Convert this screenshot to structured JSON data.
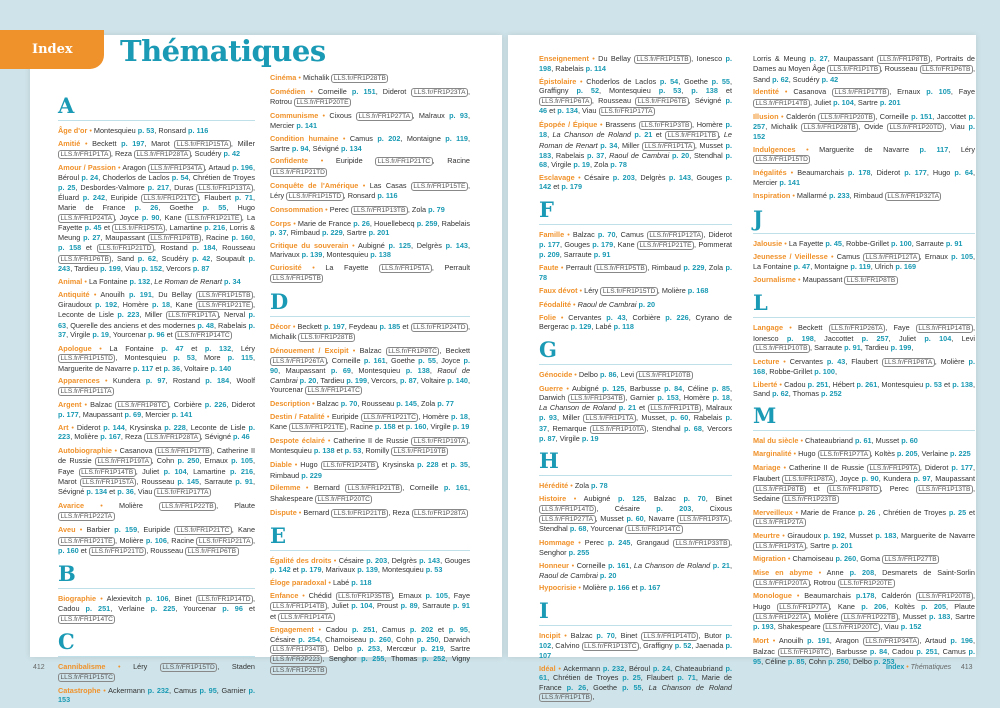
{
  "header": {
    "tab": "Index",
    "title": "Thématiques"
  },
  "footer": {
    "left_page": "412",
    "section": "Index",
    "separator": "•",
    "subsection": "Thématiques",
    "right_page": "413"
  },
  "colors": {
    "accent_orange": "#f0922b",
    "accent_teal": "#1a9ab4",
    "background": "#cfe4ea"
  },
  "columns": [
    [
      {
        "letter": "A"
      },
      {
        "term": "Âge d'or",
        "body": "Montesquieu p. 53, Ronsard p. 116"
      },
      {
        "term": "Amitié",
        "body": "Beckett p. 197, Marot LLS.fr/FR1P15TA, Miller LLS.fr/FR1P1TA, Reza LLS.fr/FR1P28TA, Scudéry p. 42"
      },
      {
        "term": "Amour / Passion",
        "body": "Aragon LLS.fr/FR1P34TA, Artaud p. 196, Béroul p. 24, Choderlos de Laclos p. 54, Chrétien de Troyes p. 25, Desbordes-Valmore p. 217, Duras LLS.fr/FR1P13TA, Éluard p. 242, Euripide LLS.fr/FR1P21TC, Flaubert p. 71, Marie de France p. 26, Goethe p. 55, Hugo LLS.fr/FR1P24TA, Joyce p. 90, Kane LLS.fr/FR1P21TE, La Fayette p. 45 et LLS.fr/FR1P5TA, Lamartine p. 216, Lorris & Meung p. 27, Maupassant LLS.fr/FR1P8TB, Racine p. 160, p. 158 et LLS.fr/FR1P21TD, Rostand p. 184, Rousseau LLS.fr/FR1P6TB, Sand p. 62, Scudéry p. 42, Soupault p. 243, Tardieu p. 199, Viau p. 152, Vercors p. 87"
      },
      {
        "term": "Animal",
        "body": "La Fontaine p. 132, Le Roman de Renart p. 34",
        "italic": [
          "Le Roman de Renart"
        ]
      },
      {
        "term": "Antiquité",
        "body": "Anouilh p. 191, Du Bellay LLS.fr/FR1P15TB, Giraudoux p. 192, Homère p. 18, Kane LLS.fr/FR1P21TE, Leconte de Lisle p. 223, Miller LLS.fr/FR1P1TA, Nerval p. 63, Querelle des anciens et des modernes p. 48, Rabelais p. 37, Virgile p. 19, Yourcenar p. 96 et LLS.fr/FR1P14TC"
      },
      {
        "term": "Apologue",
        "body": "La Fontaine p. 47 et p. 132, Léry LLS.fr/FR1P15TD, Montesquieu p. 53, More p. 115, Marguerite de Navarre p. 117 et p. 36, Voltaire p. 140"
      },
      {
        "term": "Apparences",
        "body": "Kundera p. 97, Rostand p. 184, Woolf LLS.fr/FR1P11TA"
      },
      {
        "term": "Argent",
        "body": "Balzac LLS.fr/FR1P8TC, Corbière p. 226, Diderot p. 177, Maupassant p. 69, Mercier p. 141"
      },
      {
        "term": "Art",
        "body": "Diderot p. 144, Krysinska p. 228, Leconte de Lisle p. 223, Molière p. 167, Reza LLS.fr/FR1P28TA, Sévigné p. 46"
      },
      {
        "term": "Autobiographie",
        "body": "Casanova LLS.fr/FR1P17TB, Catherine II de Russie LLS.fr/FR1P19TA, Cohn p. 250, Ernaux p. 105, Faye LLS.fr/FR1P14TB, Juliet p. 104, Lamartine p. 216, Marot LLS.fr/FR1P15TA, Rousseau p. 145, Sarraute p. 91, Sévigné p. 134 et p. 36, Viau LLS.fr/FR1P17TA"
      },
      {
        "term": "Avarice",
        "body": "Molière LLS.fr/FR1P22TB, Plaute LLS.fr/FR1P22TA"
      },
      {
        "term": "Aveu",
        "body": "Barbier p. 159, Euripide LLS.fr/FR1P21TC, Kane LLS.fr/FR1P21TE, Molière p. 106, Racine LLS.fr/FR1P21TA, p. 160 et LLS.fr/FR1P21TD, Rousseau LLS.fr/FR1P6TB"
      },
      {
        "letter": "B"
      },
      {
        "term": "Biographie",
        "body": "Alexievitch p. 106, Binet LLS.fr/FR1P14TD, Cadou p. 251, Verlaine p. 225, Yourcenar p. 96 et LLS.fr/FR1P14TC"
      },
      {
        "letter": "C"
      },
      {
        "term": "Cannibalisme",
        "body": "Léry LLS.fr/FR1P15TD, Staden LLS.fr/FR1P15TC"
      },
      {
        "term": "Catastrophe",
        "body": "Ackermann p. 232, Camus p. 95, Garnier p. 153"
      }
    ],
    [
      {
        "term": "Cinéma",
        "body": "Michalik LLS.fr/FR1P28TB"
      },
      {
        "term": "Comédien",
        "body": "Corneille p. 151, Diderot LLS.fr/FR1P23TA, Rotrou LLS.fr/FR1P20TE"
      },
      {
        "term": "Communisme",
        "body": "Cixous LLS.fr/FR1P27TA, Malraux p. 93, Mercier p. 141"
      },
      {
        "term": "Condition humaine",
        "body": "Camus p. 202, Montaigne p. 119, Sartre p. 94, Sévigné p. 134"
      },
      {
        "term": "Confidente",
        "body": "Euripide LLS.fr/FR1P21TC, Racine LLS.fr/FR1P21TD"
      },
      {
        "term": "Conquête de l'Amérique",
        "body": "Las Casas LLS.fr/FR1P15TE, Léry LLS.fr/FR1P15TD, Ronsard p. 116"
      },
      {
        "term": "Consommation",
        "body": "Perec LLS.fr/FR1P13TB, Zola p. 79"
      },
      {
        "term": "Corps",
        "body": "Marie de France p. 26, Houellebecq p. 259, Rabelais p. 37, Rimbaud p. 229, Sartre p. 201"
      },
      {
        "term": "Critique du souverain",
        "body": "Aubigné p. 125, Delgrès p. 143, Marivaux p. 139, Montesquieu p. 138"
      },
      {
        "term": "Curiosité",
        "body": "La Fayette LLS.fr/FR1P5TA, Perrault LLS.fr/FR1P5TB"
      },
      {
        "letter": "D"
      },
      {
        "term": "Décor",
        "body": "Beckett p. 197, Feydeau p. 185 et LLS.fr/FR1P24TD, Michalik LLS.fr/FR1P28TB"
      },
      {
        "term": "Dénouement / Excipit",
        "body": "Balzac LLS.fr/FR1P8TC, Beckett LLS.fr/FR1P26TA, Corneille p. 161, Goethe p. 55, Joyce p. 90, Maupassant p. 69, Montesquieu p. 138, Raoul de Cambrai p. 20, Tardieu p. 199, Vercors, p. 87, Voltaire p. 140, Yourcenar LLS.fr/FR1P14TC",
        "italic": [
          "Raoul de Cambrai"
        ]
      },
      {
        "term": "Description",
        "body": "Balzac p. 70, Rousseau p. 145, Zola p. 77"
      },
      {
        "term": "Destin / Fatalité",
        "body": "Euripide LLS.fr/FR1P21TC, Homère p. 18, Kane LLS.fr/FR1P21TE, Racine p. 158 et p. 160, Virgile p. 19"
      },
      {
        "term": "Despote éclairé",
        "body": "Catherine II de Russie LLS.fr/FR1P19TA, Montesquieu p. 138 et p. 53, Romilly LLS.fr/FR1P19TB"
      },
      {
        "term": "Diable",
        "body": "Hugo LLS.fr/FR1P24TB, Krysinska p. 228 et p. 35, Rimbaud p. 229"
      },
      {
        "term": "Dilemme",
        "body": "Bernard LLS.fr/FR1P21TB, Corneille p. 161, Shakespeare LLS.fr/FR1P20TC"
      },
      {
        "term": "Dispute",
        "body": "Bernard LLS.fr/FR1P21TB, Reza LLS.fr/FR1P28TA"
      },
      {
        "letter": "E"
      },
      {
        "term": "Égalité des droits",
        "body": "Césaire p. 203, Delgrès p. 143, Gouges p. 142 et p. 179, Marivaux p. 139, Montesquieu p. 53"
      },
      {
        "term": "Éloge paradoxal",
        "body": "Labé p. 118"
      },
      {
        "term": "Enfance",
        "body": "Chédid LLS.fr/FR1P35TB, Ernaux p. 105, Faye LLS.fr/FR1P14TB, Juliet p. 104, Proust p. 89, Sarraute p. 91 et LLS.fr/FR1P14TA"
      },
      {
        "term": "Engagement",
        "body": "Cadou p. 251, Camus p. 202 et p. 95, Césaire p. 254, Chamoiseau p. 260, Cohn p. 250, Darwich LLS.fr/FR1P34TB, Delbo p. 253, Mercœur p. 219, Sartre LLS.fr/FR2P223, Senghor p. 255, Thomas p. 252, Vigny LLS.fr/FR1P25TB"
      }
    ],
    [
      {
        "term": "Enseignement",
        "body": "Du Bellay LLS.fr/FR1P15TB, Ionesco p. 198, Rabelais p. 114"
      },
      {
        "term": "Épistolaire",
        "body": "Choderlos de Laclos p. 54, Goethe p. 55, Graffigny p. 52, Montesquieu p. 53, p. 138 et LLS.fr/FR1P6TA, Rousseau LLS.fr/FR1P6TB, Sévigné p. 46 et p. 134, Viau LLS.fr/FR1P17TA"
      },
      {
        "term": "Épopée / Épique",
        "body": "Brassens LLS.fr/FR1P3TB, Homère p. 18, La Chanson de Roland p. 21 et LLS.fr/FR1P1TB, Le Roman de Renart p. 34, Miller LLS.fr/FR1P1TA, Musset p. 183, Rabelais p. 37, Raoul de Cambrai p. 20, Stendhal p. 68, Virgile p. 19, Zola p. 78",
        "italic": [
          "La Chanson de Roland",
          "Le Roman de Renart",
          "Raoul de Cambrai"
        ]
      },
      {
        "term": "Esclavage",
        "body": "Césaire p. 203, Delgrès p. 143, Gouges p. 142 et p. 179"
      },
      {
        "letter": "F"
      },
      {
        "term": "Famille",
        "body": "Balzac p. 70, Camus LLS.fr/FR1P12TA, Diderot p. 177, Gouges p. 179, Kane LLS.fr/FR1P21TE, Pommerat p. 209, Sarraute p. 91"
      },
      {
        "term": "Faute",
        "body": "Perrault LLS.fr/FR1P5TB, Rimbaud p. 229, Zola p. 78"
      },
      {
        "term": "Faux dévot",
        "body": "Léry LLS.fr/FR1P15TD, Molière p. 168"
      },
      {
        "term": "Féodalité",
        "body": "Raoul de Cambrai p. 20",
        "italic": [
          "Raoul de Cambrai"
        ]
      },
      {
        "term": "Folie",
        "body": "Cervantes p. 43, Corbière p. 226, Cyrano de Bergerac p. 129, Labé p. 118"
      },
      {
        "letter": "G"
      },
      {
        "term": "Génocide",
        "body": "Delbo p. 86, Levi LLS.fr/FR1P10TB"
      },
      {
        "term": "Guerre",
        "body": "Aubigné p. 125, Barbusse p. 84, Céline p. 85, Darwich LLS.fr/FR1P34TB, Garnier p. 153, Homère p. 18, La Chanson de Roland p. 21 et LLS.fr/FR1P1TB, Malraux p. 93, Miller LLS.fr/FR1P1TA, Musset, p. 60, Rabelais p. 37, Remarque LLS.fr/FR1P10TA, Stendhal p. 68, Vercors p. 87, Virgile p. 19",
        "italic": [
          "La Chanson de Roland"
        ]
      },
      {
        "letter": "H"
      },
      {
        "term": "Hérédité",
        "body": "Zola p. 78"
      },
      {
        "term": "Histoire",
        "body": "Aubigné p. 125, Balzac p. 70, Binet LLS.fr/FR1P14TD, Césaire p. 203, Cixous LLS.fr/FR1P27TA, Musset p. 60, Navarre LLS.fr/FR1P3TA, Stendhal p. 68, Yourcenar LLS.fr/FR1P14TC"
      },
      {
        "term": "Hommage",
        "body": "Perec p. 245, Grangaud LLS.fr/FR1P33TB, Senghor p. 255"
      },
      {
        "term": "Honneur",
        "body": "Corneille p. 161, La Chanson de Roland p. 21, Raoul de Cambrai p. 20",
        "italic": [
          "La Chanson de Roland",
          "Raoul de Cambrai"
        ]
      },
      {
        "term": "Hypocrisie",
        "body": "Molière p. 166 et p. 167"
      },
      {
        "letter": "I"
      },
      {
        "term": "Incipit",
        "body": "Balzac p. 70, Binet LLS.fr/FR1P14TD, Butor p. 102, Calvino LLS.fr/FR1P13TC, Graffigny p. 52, Jaenada p. 107"
      },
      {
        "term": "Idéal",
        "body": "Ackermann p. 232, Béroul p. 24, Chateaubriand p. 61, Chrétien de Troyes p. 25, Flaubert p. 71, Marie de France p. 26, Goethe p. 55, La Chanson de Roland LLS.fr/FR1P1TB,",
        "italic": [
          "La Chanson de Roland"
        ]
      }
    ],
    [
      {
        "term": "",
        "body": "Lorris & Meung p. 27, Maupassant LLS.fr/FR1P8TB, Portraits de Dames au Moyen Âge LLS.fr/FR1P1TB, Rousseau LLS.fr/FR1P6TB, Sand p. 62, Scudéry p. 42"
      },
      {
        "term": "Identité",
        "body": "Casanova LLS.fr/FR1P17TB, Ernaux p. 105, Faye LLS.fr/FR1P14TB, Juliet p. 104, Sartre p. 201"
      },
      {
        "term": "Illusion",
        "body": "Calderón LLS.fr/FR1P20TB, Corneille p. 151, Jaccottet p. 257, Michalik LLS.fr/FR1P28TB, Ovide LLS.fr/FR1P20TD, Viau p. 152"
      },
      {
        "term": "Indulgences",
        "body": "Marguerite de Navarre p. 117, Léry LLS.fr/FR1P15TD"
      },
      {
        "term": "Inégalités",
        "body": "Beaumarchais p. 178, Diderot p. 177, Hugo p. 64, Mercier p. 141"
      },
      {
        "term": "Inspiration",
        "body": "Mallarmé p. 233, Rimbaud LLS.fr/FR1P32TA"
      },
      {
        "letter": "J"
      },
      {
        "term": "Jalousie",
        "body": "La Fayette p. 45, Robbe-Grillet p. 100, Sarraute p. 91"
      },
      {
        "term": "Jeunesse / Vieillesse",
        "body": "Camus LLS.fr/FR1P12TA, Ernaux p. 105, La Fontaine p. 47, Montaigne p. 119, Ulrich p. 169"
      },
      {
        "term": "Journalisme",
        "body": "Maupassant LLS.fr/FR1P8TB"
      },
      {
        "letter": "L"
      },
      {
        "term": "Langage",
        "body": "Beckett LLS.fr/FR1P26TA, Faye LLS.fr/FR1P14TB, Ionesco p. 198, Jaccottet p. 257, Juliet p. 104, Levi LLS.fr/FR1P10TB, Sarraute p. 91, Tardieu p. 199,"
      },
      {
        "term": "Lecture",
        "body": "Cervantes p. 43, Flaubert LLS.fr/FR1P8TA, Molière p. 168, Robbe-Grillet p. 100,"
      },
      {
        "term": "Liberté",
        "body": "Cadou p. 251, Hébert p. 261, Montesquieu p. 53 et p. 138, Sand p. 62, Thomas p. 252"
      },
      {
        "letter": "M"
      },
      {
        "term": "Mal du siècle",
        "body": "Chateaubriand p. 61, Musset p. 60"
      },
      {
        "term": "Marginalité",
        "body": "Hugo LLS.fr/FR1P7TA, Koltès p. 205, Verlaine p. 225"
      },
      {
        "term": "Mariage",
        "body": "Catherine II de Russie LLS.fr/FR1P9TA, Diderot p. 177, Flaubert LLS.fr/FR1P8TA, Joyce p. 90, Kundera p. 97, Maupassant LLS.fr/FR1P8TB et LLS.fr/FR1P8TD, Perec LLS.fr/FR1P13TB, Sedaine LLS.fr/FR1P23TB"
      },
      {
        "term": "Merveilleux",
        "body": "Marie de France p. 26 , Chrétien de Troyes p. 25 et LLS.fr/FR1P2TA"
      },
      {
        "term": "Meurtre",
        "body": "Giraudoux p. 192, Musset p. 183, Marguerite de Navarre LLS.fr/FR1P3TA, Sartre p. 201"
      },
      {
        "term": "Migration",
        "body": "Chamoiseau p. 260, Goma LLS.fr/FR1P27TB"
      },
      {
        "term": "Mise en abyme",
        "body": "Anne p. 208, Desmarets de Saint-Sorlin LLS.fr/FR1P20TA, Rotrou LLS.fr/FR1P20TE"
      },
      {
        "term": "Monologue",
        "body": "Beaumarchais p.178, Calderón LLS.fr/FR1P20TB, Hugo LLS.fr/FR1P7TA, Kane p. 206, Koltès p. 205, Plaute LLS.fr/FR1P22TA, Molière LLS.fr/FR1P22TB, Musset p. 183, Sartre p. 193, Shakespeare LLS.fr/FR1P20TC, Viau p. 152"
      },
      {
        "term": "Mort",
        "body": "Anouilh p. 191, Aragon LLS.fr/FR1P34TA, Artaud p. 196, Balzac LLS.fr/FR1P8TC, Barbusse p. 84, Cadou p. 251, Camus p. 95, Céline p. 85, Cohn p. 250, Delbo p. 253"
      }
    ]
  ]
}
